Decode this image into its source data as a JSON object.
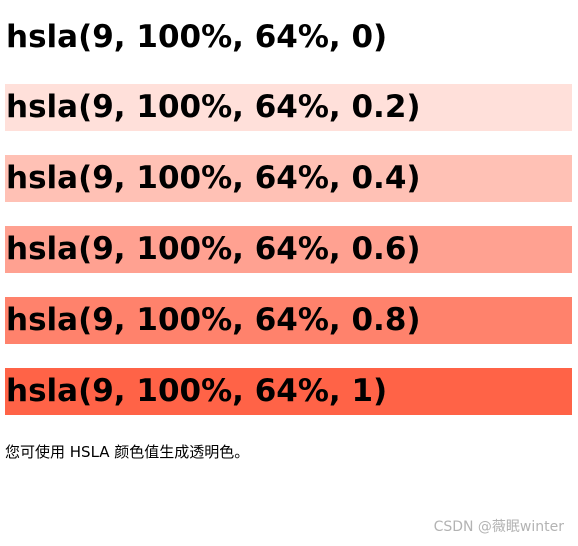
{
  "bars": [
    {
      "label": "hsla(9, 100%, 64%, 0)",
      "color": "hsla(9, 100%, 64%, 0)"
    },
    {
      "label": "hsla(9, 100%, 64%, 0.2)",
      "color": "hsla(9, 100%, 64%, 0.2)"
    },
    {
      "label": "hsla(9, 100%, 64%, 0.4)",
      "color": "hsla(9, 100%, 64%, 0.4)"
    },
    {
      "label": "hsla(9, 100%, 64%, 0.6)",
      "color": "hsla(9, 100%, 64%, 0.6)"
    },
    {
      "label": "hsla(9, 100%, 64%, 0.8)",
      "color": "hsla(9, 100%, 64%, 0.8)"
    },
    {
      "label": "hsla(9, 100%, 64%, 1)",
      "color": "hsla(9, 100%, 64%, 1)"
    }
  ],
  "caption": "您可使用 HSLA 颜色值生成透明色。",
  "watermark": "CSDN @薇眠winter"
}
